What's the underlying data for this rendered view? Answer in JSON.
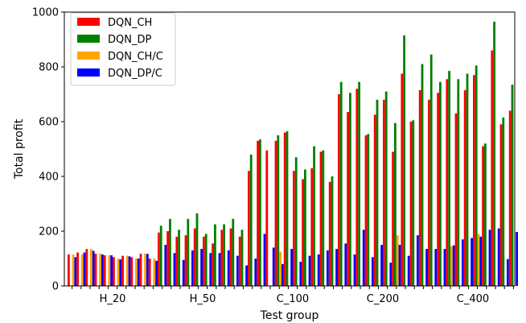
{
  "chart_data": {
    "type": "bar",
    "xlabel": "Test group",
    "ylabel": "Total profit",
    "ylim": [
      0,
      1000
    ],
    "yticks": [
      0,
      200,
      400,
      600,
      800,
      1000
    ],
    "grid": false,
    "legend_position": "top-left",
    "groups": [
      "H_20",
      "H_50",
      "C_100",
      "C_200",
      "C_400"
    ],
    "series": [
      {
        "name": "DQN_CH",
        "color": "#ff0000",
        "values": [
          [
            115,
            122,
            135,
            118,
            112,
            105,
            110,
            105,
            118,
            100
          ],
          [
            195,
            200,
            180,
            185,
            210,
            180,
            155,
            205,
            210,
            180
          ],
          [
            420,
            530,
            495,
            530,
            560,
            420,
            390,
            430,
            490,
            380
          ],
          [
            700,
            635,
            720,
            550,
            625,
            680,
            490,
            775,
            600,
            715
          ],
          [
            680,
            705,
            755,
            630,
            715,
            770,
            510,
            860,
            590,
            640
          ]
        ]
      },
      {
        "name": "DQN_DP",
        "color": "#008000",
        "values": [
          [
            0,
            0,
            0,
            0,
            0,
            0,
            0,
            0,
            0,
            0
          ],
          [
            220,
            245,
            205,
            245,
            265,
            190,
            225,
            225,
            245,
            205
          ],
          [
            480,
            535,
            0,
            550,
            565,
            470,
            425,
            510,
            495,
            400
          ],
          [
            745,
            705,
            745,
            555,
            680,
            710,
            595,
            915,
            605,
            810
          ],
          [
            845,
            745,
            785,
            755,
            775,
            805,
            520,
            965,
            615,
            735
          ]
        ]
      },
      {
        "name": "DQN_CH/C",
        "color": "#ffa500",
        "values": [
          [
            115,
            115,
            135,
            118,
            112,
            100,
            110,
            100,
            118,
            100
          ],
          [
            0,
            0,
            0,
            0,
            0,
            0,
            0,
            0,
            0,
            0
          ],
          [
            0,
            0,
            0,
            125,
            0,
            0,
            0,
            0,
            0,
            0
          ],
          [
            0,
            0,
            0,
            0,
            0,
            0,
            185,
            0,
            0,
            0
          ],
          [
            0,
            0,
            145,
            0,
            0,
            190,
            0,
            0,
            0,
            0
          ]
        ]
      },
      {
        "name": "DQN_DP/C",
        "color": "#0000ff",
        "values": [
          [
            105,
            122,
            128,
            115,
            112,
            97,
            108,
            100,
            117,
            92
          ],
          [
            150,
            120,
            95,
            130,
            135,
            120,
            120,
            130,
            110,
            75
          ],
          [
            100,
            190,
            140,
            80,
            135,
            88,
            110,
            115,
            130,
            135
          ],
          [
            155,
            115,
            205,
            105,
            150,
            85,
            150,
            110,
            185,
            135
          ],
          [
            135,
            135,
            148,
            170,
            175,
            180,
            205,
            210,
            98,
            197
          ]
        ]
      }
    ]
  }
}
